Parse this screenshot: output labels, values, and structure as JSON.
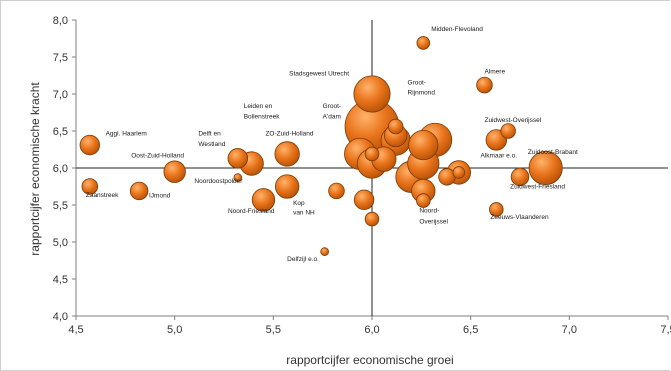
{
  "chart_data": {
    "type": "scatter",
    "title": "",
    "xlabel": "rapportcijfer economische groei",
    "ylabel": "rapportcijfer economische kracht",
    "xlim": [
      4.5,
      7.5
    ],
    "ylim": [
      4.0,
      8.0
    ],
    "x_ticks": [
      "4,5",
      "5,0",
      "5,5",
      "6,0",
      "6,5",
      "7,0",
      "7,5"
    ],
    "y_ticks": [
      "4,0",
      "4,5",
      "5,0",
      "5,5",
      "6,0",
      "6,5",
      "7,0",
      "7,5",
      "8,0"
    ],
    "reference_lines": {
      "x": 6.0,
      "y": 6.0
    },
    "grid": false,
    "bubble_color": "#e8731a",
    "bubble_edge_color": "#7a3a05",
    "points": [
      {
        "x": 4.57,
        "y": 6.31,
        "size": 2.0
      },
      {
        "x": 4.57,
        "y": 5.75,
        "size": 1.6
      },
      {
        "x": 4.82,
        "y": 5.69,
        "size": 1.8
      },
      {
        "x": 5.0,
        "y": 5.95,
        "size": 2.2
      },
      {
        "x": 5.32,
        "y": 5.87,
        "size": 0.8
      },
      {
        "x": 5.32,
        "y": 6.13,
        "size": 2.0
      },
      {
        "x": 5.39,
        "y": 6.06,
        "size": 2.4
      },
      {
        "x": 5.45,
        "y": 5.57,
        "size": 2.3
      },
      {
        "x": 5.57,
        "y": 6.19,
        "size": 2.5
      },
      {
        "x": 5.57,
        "y": 5.75,
        "size": 2.4
      },
      {
        "x": 5.76,
        "y": 4.87,
        "size": 0.8
      },
      {
        "x": 5.82,
        "y": 5.69,
        "size": 1.6
      },
      {
        "x": 5.96,
        "y": 5.57,
        "size": 2.0
      },
      {
        "x": 5.94,
        "y": 6.19,
        "size": 3.2
      },
      {
        "x": 6.0,
        "y": 6.56,
        "size": 5.5
      },
      {
        "x": 6.0,
        "y": 7.0,
        "size": 3.7
      },
      {
        "x": 6.0,
        "y": 6.19,
        "size": 1.4
      },
      {
        "x": 6.0,
        "y": 6.06,
        "size": 3.0
      },
      {
        "x": 6.0,
        "y": 5.31,
        "size": 1.4
      },
      {
        "x": 6.06,
        "y": 6.12,
        "size": 2.5
      },
      {
        "x": 6.12,
        "y": 6.56,
        "size": 1.5
      },
      {
        "x": 6.12,
        "y": 6.44,
        "size": 2.3
      },
      {
        "x": 6.12,
        "y": 6.37,
        "size": 3.0
      },
      {
        "x": 6.2,
        "y": 5.88,
        "size": 3.2
      },
      {
        "x": 6.26,
        "y": 6.31,
        "size": 3.0
      },
      {
        "x": 6.26,
        "y": 6.06,
        "size": 3.2
      },
      {
        "x": 6.26,
        "y": 5.69,
        "size": 2.4
      },
      {
        "x": 6.26,
        "y": 5.56,
        "size": 1.4
      },
      {
        "x": 6.32,
        "y": 6.38,
        "size": 3.4
      },
      {
        "x": 6.26,
        "y": 7.69,
        "size": 1.3
      },
      {
        "x": 6.38,
        "y": 5.88,
        "size": 1.7
      },
      {
        "x": 6.44,
        "y": 5.94,
        "size": 2.4
      },
      {
        "x": 6.44,
        "y": 5.94,
        "size": 1.2
      },
      {
        "x": 6.57,
        "y": 7.12,
        "size": 1.6
      },
      {
        "x": 6.63,
        "y": 6.38,
        "size": 2.1
      },
      {
        "x": 6.69,
        "y": 6.5,
        "size": 1.5
      },
      {
        "x": 6.63,
        "y": 5.44,
        "size": 1.4
      },
      {
        "x": 6.75,
        "y": 5.88,
        "size": 1.8
      },
      {
        "x": 6.88,
        "y": 6.0,
        "size": 3.4
      }
    ],
    "labels": [
      {
        "text": "Aggl. Haarlem",
        "x": 4.65,
        "y": 6.44,
        "anchor": "start"
      },
      {
        "text": "Oost-Zuid-Holland",
        "x": 4.78,
        "y": 6.14,
        "anchor": "start"
      },
      {
        "text": "Zaanstreek",
        "x": 4.55,
        "y": 5.61,
        "anchor": "start"
      },
      {
        "text": "IJmond",
        "x": 4.87,
        "y": 5.6,
        "anchor": "start"
      },
      {
        "text": "Delft en",
        "x": 5.12,
        "y": 6.44,
        "anchor": "start"
      },
      {
        "text": "Westland",
        "x": 5.12,
        "y": 6.3,
        "anchor": "start"
      },
      {
        "text": "Noordoostpolder",
        "x": 5.1,
        "y": 5.8,
        "anchor": "start"
      },
      {
        "text": "Noord-Friesland",
        "x": 5.27,
        "y": 5.39,
        "anchor": "start"
      },
      {
        "text": "Leiden en",
        "x": 5.35,
        "y": 6.81,
        "anchor": "start"
      },
      {
        "text": "Bollenstreek",
        "x": 5.35,
        "y": 6.67,
        "anchor": "start"
      },
      {
        "text": "ZO-Zuid-Holland",
        "x": 5.46,
        "y": 6.44,
        "anchor": "start"
      },
      {
        "text": "Kop",
        "x": 5.6,
        "y": 5.5,
        "anchor": "start"
      },
      {
        "text": "van NH",
        "x": 5.6,
        "y": 5.37,
        "anchor": "start"
      },
      {
        "text": "Stadsgewest Utrecht",
        "x": 5.58,
        "y": 7.25,
        "anchor": "start"
      },
      {
        "text": "Groot-",
        "x": 5.75,
        "y": 6.81,
        "anchor": "start"
      },
      {
        "text": "A'dam",
        "x": 5.75,
        "y": 6.67,
        "anchor": "start"
      },
      {
        "text": "Delfzijl e.o.",
        "x": 5.57,
        "y": 4.74,
        "anchor": "start"
      },
      {
        "text": "Midden-Flevoland",
        "x": 6.3,
        "y": 7.85,
        "anchor": "start"
      },
      {
        "text": "Groot-",
        "x": 6.18,
        "y": 7.13,
        "anchor": "start"
      },
      {
        "text": "Rijnmond",
        "x": 6.18,
        "y": 6.99,
        "anchor": "start"
      },
      {
        "text": "Almere",
        "x": 6.57,
        "y": 7.28,
        "anchor": "start"
      },
      {
        "text": "Zuidwest-Overijssel",
        "x": 6.57,
        "y": 6.62,
        "anchor": "start"
      },
      {
        "text": "Alkmaar e.o.",
        "x": 6.55,
        "y": 6.14,
        "anchor": "start"
      },
      {
        "text": "Zuidoost-Brabant",
        "x": 6.79,
        "y": 6.19,
        "anchor": "start"
      },
      {
        "text": "Zuidwest-Friesland",
        "x": 6.7,
        "y": 5.72,
        "anchor": "start"
      },
      {
        "text": "Noord-",
        "x": 6.24,
        "y": 5.4,
        "anchor": "start"
      },
      {
        "text": "Overijssel",
        "x": 6.24,
        "y": 5.25,
        "anchor": "start"
      },
      {
        "text": "Zeeuws-Vlaanderen",
        "x": 6.6,
        "y": 5.31,
        "anchor": "start"
      }
    ]
  }
}
